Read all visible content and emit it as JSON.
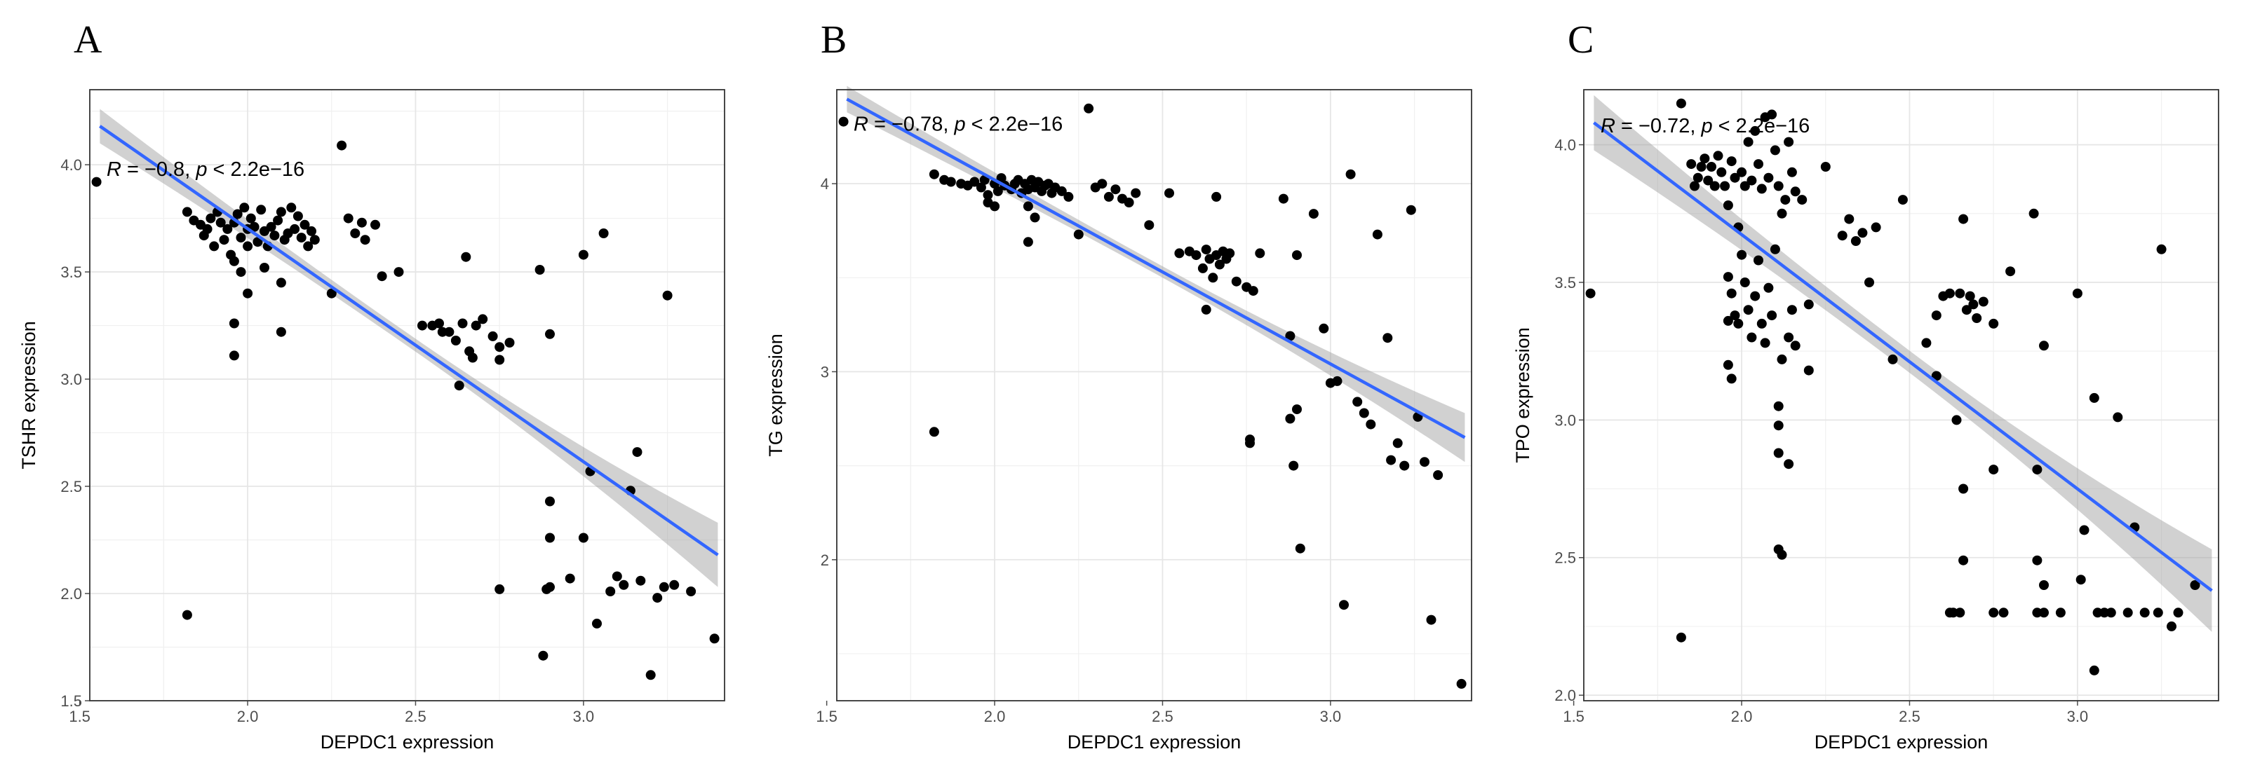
{
  "chart_data": [
    {
      "type": "scatter",
      "panel_label": "A",
      "xlabel": "DEPDC1 expression",
      "ylabel": "TSHR expression",
      "xlim": [
        1.53,
        3.42
      ],
      "ylim": [
        1.5,
        4.35
      ],
      "xticks": [
        1.5,
        2.0,
        2.5,
        3.0
      ],
      "xtick_labels": [
        "1.5",
        "2.0",
        "2.5",
        "3.0"
      ],
      "yticks": [
        1.5,
        2.0,
        2.5,
        3.0,
        3.5,
        4.0
      ],
      "ytick_labels": [
        "1.5",
        "2.0",
        "2.5",
        "3.0",
        "3.5",
        "4.0"
      ],
      "annotation": {
        "r_sym": "R",
        "r_val": " = −0.8, ",
        "p_sym": "p",
        "p_val": " < 2.2e−16",
        "x": 1.58,
        "y": 3.98
      },
      "fit": {
        "x": [
          1.56,
          3.4
        ],
        "y": [
          4.18,
          2.18
        ],
        "band": [
          0.08,
          0.03,
          0.15
        ]
      },
      "grid": true,
      "legend": "none",
      "points": [
        [
          1.55,
          3.92
        ],
        [
          1.82,
          3.78
        ],
        [
          1.84,
          3.74
        ],
        [
          1.86,
          3.72
        ],
        [
          1.87,
          3.67
        ],
        [
          1.88,
          3.7
        ],
        [
          1.89,
          3.75
        ],
        [
          1.9,
          3.62
        ],
        [
          1.91,
          3.78
        ],
        [
          1.92,
          3.73
        ],
        [
          1.93,
          3.65
        ],
        [
          1.94,
          3.7
        ],
        [
          1.95,
          3.58
        ],
        [
          1.96,
          3.73
        ],
        [
          1.97,
          3.77
        ],
        [
          1.98,
          3.66
        ],
        [
          1.99,
          3.8
        ],
        [
          2.0,
          3.7
        ],
        [
          2.0,
          3.62
        ],
        [
          2.01,
          3.75
        ],
        [
          2.02,
          3.71
        ],
        [
          2.03,
          3.64
        ],
        [
          2.04,
          3.79
        ],
        [
          2.05,
          3.69
        ],
        [
          2.06,
          3.62
        ],
        [
          2.07,
          3.71
        ],
        [
          2.08,
          3.67
        ],
        [
          2.09,
          3.74
        ],
        [
          2.1,
          3.78
        ],
        [
          2.11,
          3.65
        ],
        [
          2.12,
          3.68
        ],
        [
          2.13,
          3.8
        ],
        [
          2.14,
          3.7
        ],
        [
          2.15,
          3.76
        ],
        [
          2.16,
          3.66
        ],
        [
          2.17,
          3.72
        ],
        [
          2.18,
          3.62
        ],
        [
          2.19,
          3.69
        ],
        [
          2.2,
          3.65
        ],
        [
          1.96,
          3.55
        ],
        [
          1.98,
          3.5
        ],
        [
          2.0,
          3.4
        ],
        [
          2.05,
          3.52
        ],
        [
          2.1,
          3.45
        ],
        [
          2.1,
          3.22
        ],
        [
          1.96,
          3.26
        ],
        [
          1.96,
          3.11
        ],
        [
          2.25,
          3.4
        ],
        [
          2.28,
          4.09
        ],
        [
          2.3,
          3.75
        ],
        [
          2.32,
          3.68
        ],
        [
          2.34,
          3.73
        ],
        [
          2.35,
          3.65
        ],
        [
          2.38,
          3.72
        ],
        [
          2.4,
          3.48
        ],
        [
          2.45,
          3.5
        ],
        [
          2.52,
          3.25
        ],
        [
          2.55,
          3.25
        ],
        [
          2.57,
          3.26
        ],
        [
          2.58,
          3.22
        ],
        [
          2.6,
          3.22
        ],
        [
          2.62,
          3.18
        ],
        [
          2.64,
          3.26
        ],
        [
          2.66,
          3.13
        ],
        [
          2.67,
          3.1
        ],
        [
          2.68,
          3.25
        ],
        [
          2.7,
          3.28
        ],
        [
          2.73,
          3.2
        ],
        [
          2.75,
          3.15
        ],
        [
          2.75,
          3.09
        ],
        [
          2.78,
          3.17
        ],
        [
          2.65,
          3.57
        ],
        [
          2.63,
          2.97
        ],
        [
          2.87,
          3.51
        ],
        [
          2.9,
          3.21
        ],
        [
          3.0,
          3.58
        ],
        [
          3.06,
          3.68
        ],
        [
          3.02,
          2.57
        ],
        [
          3.16,
          2.66
        ],
        [
          3.14,
          2.48
        ],
        [
          3.25,
          3.39
        ],
        [
          2.9,
          2.43
        ],
        [
          2.9,
          2.26
        ],
        [
          2.89,
          2.02
        ],
        [
          2.9,
          2.03
        ],
        [
          2.88,
          1.71
        ],
        [
          2.96,
          2.07
        ],
        [
          3.0,
          2.26
        ],
        [
          3.04,
          1.86
        ],
        [
          3.08,
          2.01
        ],
        [
          3.1,
          2.08
        ],
        [
          3.12,
          2.04
        ],
        [
          3.17,
          2.06
        ],
        [
          3.2,
          1.62
        ],
        [
          3.22,
          1.98
        ],
        [
          3.24,
          2.03
        ],
        [
          3.27,
          2.04
        ],
        [
          3.32,
          2.01
        ],
        [
          3.39,
          1.79
        ],
        [
          2.75,
          2.02
        ],
        [
          1.82,
          1.9
        ]
      ]
    },
    {
      "type": "scatter",
      "panel_label": "B",
      "xlabel": "DEPDC1 expression",
      "ylabel": "TG expression",
      "xlim": [
        1.53,
        3.42
      ],
      "ylim": [
        1.25,
        4.5
      ],
      "xticks": [
        1.5,
        2.0,
        2.5,
        3.0
      ],
      "xtick_labels": [
        "1.5",
        "2.0",
        "2.5",
        "3.0"
      ],
      "yticks": [
        2,
        3,
        4
      ],
      "ytick_labels": [
        "2",
        "3",
        "4"
      ],
      "annotation": {
        "r_sym": "R",
        "r_val": " = −0.78, ",
        "p_sym": "p",
        "p_val": " < 2.2e−16",
        "x": 1.58,
        "y": 4.32
      },
      "fit": {
        "x": [
          1.56,
          3.4
        ],
        "y": [
          4.45,
          2.65
        ],
        "band": [
          0.07,
          0.03,
          0.13
        ]
      },
      "grid": true,
      "legend": "none",
      "points": [
        [
          1.55,
          4.33
        ],
        [
          1.82,
          4.05
        ],
        [
          1.85,
          4.02
        ],
        [
          1.87,
          4.01
        ],
        [
          1.9,
          4.0
        ],
        [
          1.92,
          3.99
        ],
        [
          1.94,
          4.01
        ],
        [
          1.96,
          3.98
        ],
        [
          1.97,
          4.02
        ],
        [
          1.98,
          3.94
        ],
        [
          2.0,
          4.0
        ],
        [
          2.01,
          3.96
        ],
        [
          2.02,
          4.03
        ],
        [
          2.03,
          3.99
        ],
        [
          2.05,
          3.97
        ],
        [
          2.06,
          4.0
        ],
        [
          2.07,
          4.02
        ],
        [
          2.08,
          3.95
        ],
        [
          2.09,
          4.0
        ],
        [
          2.1,
          3.97
        ],
        [
          2.11,
          4.02
        ],
        [
          2.12,
          3.98
        ],
        [
          2.13,
          4.01
        ],
        [
          2.14,
          3.96
        ],
        [
          2.15,
          3.99
        ],
        [
          2.16,
          4.0
        ],
        [
          2.17,
          3.95
        ],
        [
          2.18,
          3.98
        ],
        [
          2.2,
          3.96
        ],
        [
          2.22,
          3.93
        ],
        [
          2.1,
          3.88
        ],
        [
          2.12,
          3.82
        ],
        [
          2.1,
          3.69
        ],
        [
          1.98,
          3.9
        ],
        [
          2.0,
          3.88
        ],
        [
          2.28,
          4.4
        ],
        [
          2.3,
          3.98
        ],
        [
          2.32,
          4.0
        ],
        [
          2.34,
          3.93
        ],
        [
          2.36,
          3.97
        ],
        [
          2.38,
          3.92
        ],
        [
          2.4,
          3.9
        ],
        [
          2.42,
          3.95
        ],
        [
          2.25,
          3.73
        ],
        [
          2.46,
          3.78
        ],
        [
          2.52,
          3.95
        ],
        [
          2.55,
          3.63
        ],
        [
          2.58,
          3.64
        ],
        [
          2.6,
          3.62
        ],
        [
          2.62,
          3.55
        ],
        [
          2.63,
          3.65
        ],
        [
          2.64,
          3.6
        ],
        [
          2.65,
          3.5
        ],
        [
          2.66,
          3.62
        ],
        [
          2.67,
          3.57
        ],
        [
          2.68,
          3.64
        ],
        [
          2.69,
          3.6
        ],
        [
          2.7,
          3.63
        ],
        [
          2.72,
          3.48
        ],
        [
          2.75,
          3.45
        ],
        [
          2.77,
          3.43
        ],
        [
          2.79,
          3.63
        ],
        [
          2.66,
          3.93
        ],
        [
          2.63,
          3.33
        ],
        [
          2.86,
          3.92
        ],
        [
          2.9,
          3.62
        ],
        [
          2.95,
          3.84
        ],
        [
          2.98,
          3.23
        ],
        [
          3.0,
          2.94
        ],
        [
          3.02,
          2.95
        ],
        [
          3.06,
          4.05
        ],
        [
          3.08,
          2.84
        ],
        [
          3.1,
          2.78
        ],
        [
          3.12,
          2.72
        ],
        [
          3.14,
          3.73
        ],
        [
          3.17,
          3.18
        ],
        [
          3.18,
          2.53
        ],
        [
          3.2,
          2.62
        ],
        [
          3.22,
          2.5
        ],
        [
          3.24,
          3.86
        ],
        [
          3.28,
          2.52
        ],
        [
          3.32,
          2.45
        ],
        [
          3.26,
          2.76
        ],
        [
          3.3,
          1.68
        ],
        [
          3.39,
          1.34
        ],
        [
          2.76,
          2.64
        ],
        [
          2.76,
          2.62
        ],
        [
          2.88,
          2.75
        ],
        [
          2.89,
          2.5
        ],
        [
          2.9,
          2.8
        ],
        [
          2.91,
          2.06
        ],
        [
          2.88,
          3.19
        ],
        [
          3.04,
          1.76
        ],
        [
          1.82,
          2.68
        ]
      ]
    },
    {
      "type": "scatter",
      "panel_label": "C",
      "xlabel": "DEPDC1 expression",
      "ylabel": "TPO expression",
      "xlim": [
        1.53,
        3.42
      ],
      "ylim": [
        1.98,
        4.2
      ],
      "xticks": [
        1.5,
        2.0,
        2.5,
        3.0
      ],
      "xtick_labels": [
        "1.5",
        "2.0",
        "2.5",
        "3.0"
      ],
      "yticks": [
        2.0,
        2.5,
        3.0,
        3.5,
        4.0
      ],
      "ytick_labels": [
        "2.0",
        "2.5",
        "3.0",
        "3.5",
        "4.0"
      ],
      "annotation": {
        "r_sym": "R",
        "r_val": " = −0.72, ",
        "p_sym": "p",
        "p_val": " < 2.2e−16",
        "x": 1.58,
        "y": 4.07
      },
      "fit": {
        "x": [
          1.56,
          3.4
        ],
        "y": [
          4.08,
          2.38
        ],
        "band": [
          0.1,
          0.04,
          0.15
        ]
      },
      "grid": true,
      "legend": "none",
      "points": [
        [
          1.55,
          3.46
        ],
        [
          1.82,
          4.15
        ],
        [
          1.85,
          3.93
        ],
        [
          1.86,
          3.85
        ],
        [
          1.87,
          3.88
        ],
        [
          1.88,
          3.92
        ],
        [
          1.89,
          3.95
        ],
        [
          1.9,
          3.87
        ],
        [
          1.91,
          3.92
        ],
        [
          1.92,
          3.85
        ],
        [
          1.93,
          3.96
        ],
        [
          1.94,
          3.9
        ],
        [
          1.95,
          3.85
        ],
        [
          1.96,
          3.78
        ],
        [
          1.97,
          3.94
        ],
        [
          1.98,
          3.88
        ],
        [
          1.99,
          3.7
        ],
        [
          2.0,
          3.9
        ],
        [
          2.01,
          3.85
        ],
        [
          2.02,
          4.01
        ],
        [
          2.03,
          3.87
        ],
        [
          2.04,
          4.05
        ],
        [
          2.05,
          3.93
        ],
        [
          2.06,
          3.84
        ],
        [
          2.07,
          4.1
        ],
        [
          2.08,
          3.88
        ],
        [
          2.09,
          4.11
        ],
        [
          2.1,
          3.98
        ],
        [
          2.11,
          3.85
        ],
        [
          2.12,
          3.75
        ],
        [
          2.13,
          3.8
        ],
        [
          2.14,
          4.01
        ],
        [
          2.15,
          3.9
        ],
        [
          2.16,
          3.83
        ],
        [
          2.18,
          3.8
        ],
        [
          1.96,
          3.52
        ],
        [
          1.97,
          3.46
        ],
        [
          1.98,
          3.38
        ],
        [
          1.99,
          3.35
        ],
        [
          2.0,
          3.6
        ],
        [
          2.01,
          3.5
        ],
        [
          2.02,
          3.4
        ],
        [
          2.03,
          3.3
        ],
        [
          2.04,
          3.45
        ],
        [
          2.05,
          3.58
        ],
        [
          2.06,
          3.35
        ],
        [
          2.07,
          3.28
        ],
        [
          2.08,
          3.48
        ],
        [
          2.09,
          3.38
        ],
        [
          2.1,
          3.62
        ],
        [
          1.96,
          3.2
        ],
        [
          1.97,
          3.15
        ],
        [
          1.96,
          3.36
        ],
        [
          2.11,
          3.05
        ],
        [
          2.11,
          2.98
        ],
        [
          2.11,
          2.88
        ],
        [
          2.12,
          3.22
        ],
        [
          2.14,
          3.3
        ],
        [
          2.14,
          2.84
        ],
        [
          2.11,
          2.53
        ],
        [
          2.12,
          2.51
        ],
        [
          2.15,
          3.4
        ],
        [
          2.16,
          3.27
        ],
        [
          2.2,
          3.42
        ],
        [
          2.2,
          3.18
        ],
        [
          2.25,
          3.92
        ],
        [
          2.3,
          3.67
        ],
        [
          2.32,
          3.73
        ],
        [
          2.34,
          3.65
        ],
        [
          2.36,
          3.68
        ],
        [
          2.38,
          3.5
        ],
        [
          2.4,
          3.7
        ],
        [
          2.45,
          3.22
        ],
        [
          2.48,
          3.8
        ],
        [
          2.55,
          3.28
        ],
        [
          2.58,
          3.38
        ],
        [
          2.6,
          3.45
        ],
        [
          2.62,
          3.46
        ],
        [
          2.64,
          3.0
        ],
        [
          2.65,
          3.46
        ],
        [
          2.66,
          3.73
        ],
        [
          2.67,
          3.4
        ],
        [
          2.68,
          3.45
        ],
        [
          2.69,
          3.42
        ],
        [
          2.7,
          3.37
        ],
        [
          2.72,
          3.43
        ],
        [
          2.75,
          3.35
        ],
        [
          2.58,
          3.16
        ],
        [
          2.66,
          2.75
        ],
        [
          2.66,
          2.49
        ],
        [
          2.75,
          2.82
        ],
        [
          2.8,
          3.54
        ],
        [
          2.87,
          3.75
        ],
        [
          2.9,
          3.27
        ],
        [
          2.88,
          2.82
        ],
        [
          2.88,
          2.49
        ],
        [
          2.9,
          2.4
        ],
        [
          3.0,
          3.46
        ],
        [
          3.01,
          2.42
        ],
        [
          3.05,
          3.08
        ],
        [
          3.12,
          3.01
        ],
        [
          3.02,
          2.6
        ],
        [
          3.05,
          2.09
        ],
        [
          3.17,
          2.61
        ],
        [
          3.25,
          3.62
        ],
        [
          3.28,
          2.25
        ],
        [
          3.3,
          2.3
        ],
        [
          3.35,
          2.4
        ],
        [
          1.82,
          2.21
        ],
        [
          2.62,
          2.3
        ],
        [
          2.63,
          2.3
        ],
        [
          2.65,
          2.3
        ],
        [
          2.75,
          2.3
        ],
        [
          2.78,
          2.3
        ],
        [
          2.88,
          2.3
        ],
        [
          2.9,
          2.3
        ],
        [
          2.95,
          2.3
        ],
        [
          3.06,
          2.3
        ],
        [
          3.08,
          2.3
        ],
        [
          3.1,
          2.3
        ],
        [
          3.15,
          2.3
        ],
        [
          3.2,
          2.3
        ],
        [
          3.24,
          2.3
        ]
      ]
    }
  ]
}
